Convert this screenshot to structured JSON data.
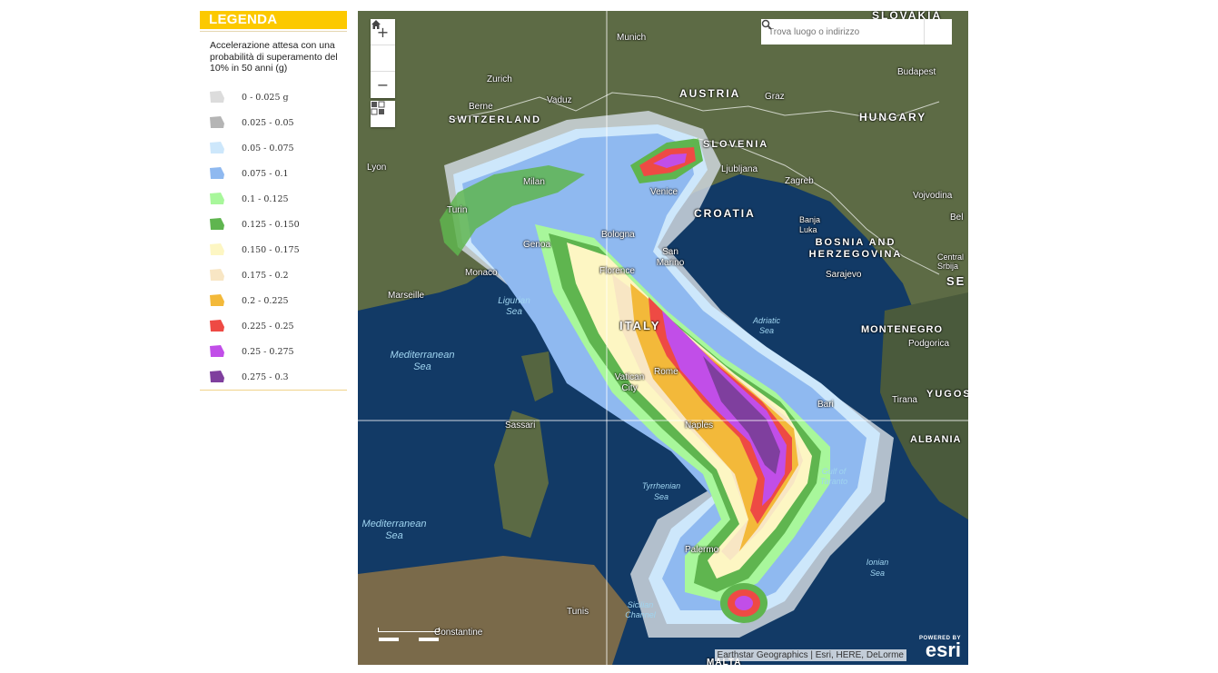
{
  "legend": {
    "title": "LEGENDA",
    "description": "Accelerazione attesa con una probabilità di superamento del 10% in 50 anni (g)",
    "items": [
      {
        "label": "0 - 0.025 g",
        "color": "#dcdcdc"
      },
      {
        "label": "0.025 - 0.05",
        "color": "#b5b5b5"
      },
      {
        "label": "0.05 - 0.075",
        "color": "#cde7fb"
      },
      {
        "label": "0.075 - 0.1",
        "color": "#8fb9f0"
      },
      {
        "label": "0.1 - 0.125",
        "color": "#a8f79b"
      },
      {
        "label": "0.125 - 0.150",
        "color": "#5fb54f"
      },
      {
        "label": "0.150 - 0.175",
        "color": "#fdf6c3"
      },
      {
        "label": "0.175 - 0.2",
        "color": "#f8e6c4"
      },
      {
        "label": "0.2 - 0.225",
        "color": "#f3b93a"
      },
      {
        "label": "0.225 - 0.25",
        "color": "#ee4a44"
      },
      {
        "label": "0.25 - 0.275",
        "color": "#c14ee8"
      },
      {
        "label": "0.275 - 0.3",
        "color": "#7f3f9e"
      }
    ]
  },
  "map": {
    "controls": {
      "zoom_in": "+",
      "home_icon": "home-icon",
      "zoom_out": "−",
      "basemap_icon": "basemap-toggle-icon"
    },
    "search": {
      "placeholder": "Trova luogo o indirizzo"
    },
    "attribution": "Earthstar Geographics | Esri, HERE, DeLorme",
    "logo": {
      "powered": "POWERED BY",
      "name": "esri"
    },
    "labels": {
      "slovakia": "SLOVAKIA",
      "munich": "Munich",
      "austria": "AUSTRIA",
      "graz": "Graz",
      "budapest": "Budapest",
      "hungary": "HUNGARY",
      "zurich": "Zurich",
      "vaduz": "Vaduz",
      "berne": "Berne",
      "switzerland": "SWITZERLAND",
      "slovenia": "SLOVENIA",
      "ljubljana": "Ljubljana",
      "zagreb": "Zagreb",
      "lyon": "Lyon",
      "milan": "Milan",
      "venice": "Venice",
      "vojvodina": "Vojvodina",
      "croatia": "CROATIA",
      "turin": "Turin",
      "bel": "Bel",
      "banja_luka": "Banja Luka",
      "bosnia": "BOSNIA AND HERZEGOVINA",
      "bologna": "Bologna",
      "genoa": "Genoa",
      "san_marino": "San Marino",
      "central_serbia": "Central Srbija",
      "sarajevo": "Sarajevo",
      "se": "SE",
      "monaco": "Monaco",
      "florence": "Florence",
      "marseille": "Marseille",
      "ligurian_sea": "Ligurian Sea",
      "adriatic_sea": "Adriatic Sea",
      "italy": "ITALY",
      "montenegro": "MONTENEGRO",
      "podgorica": "Podgorica",
      "mediterranean_sea_1": "Mediterranean Sea",
      "rome": "Rome",
      "vatican": "Vatican City",
      "tirana": "Tirana",
      "yugos": "YUGOS",
      "bari": "Bari",
      "sassari": "Sassari",
      "naples": "Naples",
      "albania": "ALBANIA",
      "gulf_taranto": "Gulf of Taranto",
      "tyrrhenian_sea": "Tyrrhenian Sea",
      "mediterranean_sea_2": "Mediterranean Sea",
      "palermo": "Palermo",
      "ionian_sea": "Ionian Sea",
      "tunis": "Tunis",
      "sicilian_channel": "Sicilian Channel",
      "constantine": "Constantine",
      "malta": "MALTA"
    }
  }
}
